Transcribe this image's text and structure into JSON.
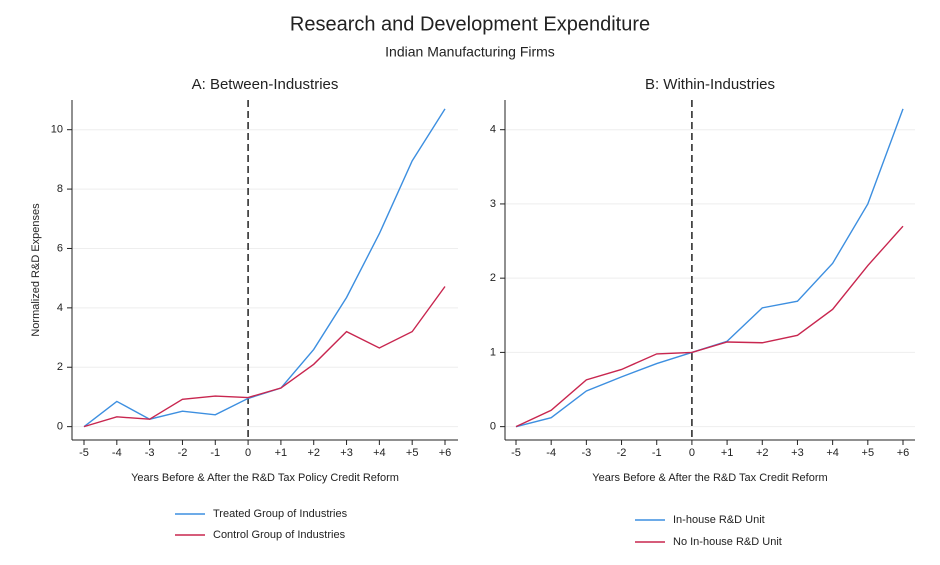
{
  "header": {
    "title": "Research and Development Expenditure",
    "subtitle": "Indian Manufacturing Firms"
  },
  "chart_data": [
    {
      "type": "line",
      "title": "A: Between-Industries",
      "ylabel": "Normalized R&D Expenses",
      "xlabel": "Years Before & After the R&D Tax Policy Credit Reform",
      "categories": [
        "-5",
        "-4",
        "-3",
        "-2",
        "-1",
        "0",
        "+1",
        "+2",
        "+3",
        "+4",
        "+5",
        "+6"
      ],
      "vline": "0",
      "ylim": [
        -0.45,
        11
      ],
      "yticks": [
        0,
        2,
        4,
        6,
        8,
        10
      ],
      "grid": true,
      "series": [
        {
          "name": "Treated Group of Industries",
          "color": "#3d8fe0",
          "values": [
            0,
            0.85,
            0.25,
            0.52,
            0.4,
            0.95,
            1.3,
            2.6,
            4.35,
            6.5,
            8.95,
            10.7
          ]
        },
        {
          "name": "Control Group of Industries",
          "color": "#c8264f",
          "values": [
            0,
            0.33,
            0.25,
            0.92,
            1.03,
            0.98,
            1.3,
            2.1,
            3.2,
            2.65,
            3.2,
            4.72
          ]
        }
      ]
    },
    {
      "type": "line",
      "title": "B: Within-Industries",
      "xlabel": "Years Before & After the R&D Tax Credit Reform",
      "categories": [
        "-5",
        "-4",
        "-3",
        "-2",
        "-1",
        "0",
        "+1",
        "+2",
        "+3",
        "+4",
        "+5",
        "+6"
      ],
      "vline": "0",
      "ylim": [
        -0.18,
        4.4
      ],
      "yticks": [
        0,
        1,
        2,
        3,
        4
      ],
      "grid": true,
      "series": [
        {
          "name": "In-house R&D Unit",
          "color": "#3d8fe0",
          "values": [
            0,
            0.12,
            0.48,
            0.67,
            0.85,
            1.0,
            1.15,
            1.6,
            1.69,
            2.2,
            3.0,
            4.28
          ]
        },
        {
          "name": "No In-house R&D Unit",
          "color": "#c8264f",
          "values": [
            0,
            0.22,
            0.63,
            0.77,
            0.98,
            1.0,
            1.14,
            1.13,
            1.23,
            1.58,
            2.17,
            2.7
          ]
        }
      ]
    }
  ]
}
